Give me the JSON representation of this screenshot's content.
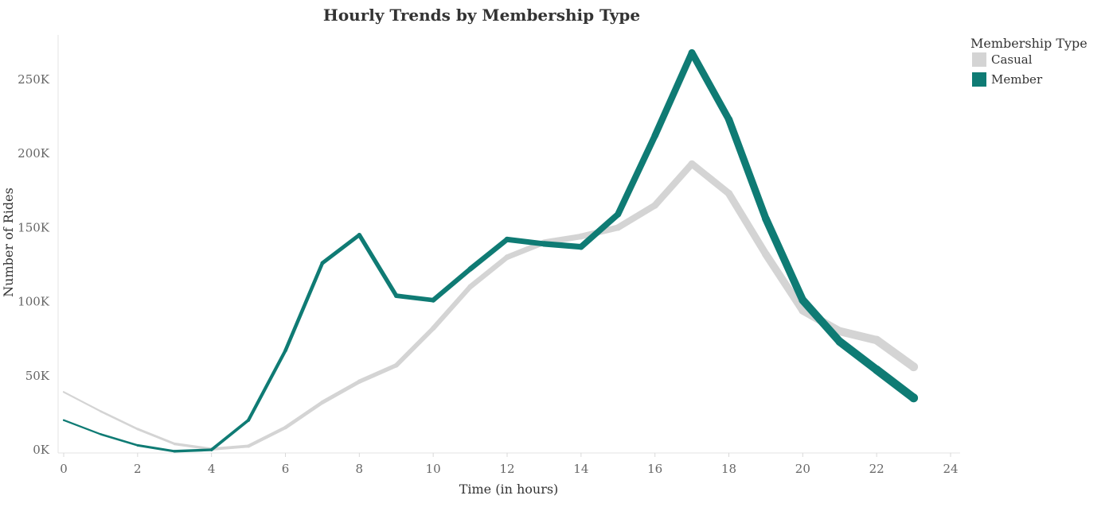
{
  "chart_data": {
    "type": "line",
    "title": "Hourly Trends by Membership Type",
    "xlabel": "Time (in hours)",
    "ylabel": "Number of Rides",
    "x": [
      0,
      1,
      2,
      3,
      4,
      5,
      6,
      7,
      8,
      9,
      10,
      11,
      12,
      13,
      14,
      15,
      16,
      17,
      18,
      19,
      20,
      21,
      22,
      23
    ],
    "xlim": [
      0,
      24
    ],
    "x_ticks": [
      0,
      2,
      4,
      6,
      8,
      10,
      12,
      14,
      16,
      18,
      20,
      22,
      24
    ],
    "ylim": [
      0,
      280000
    ],
    "y_ticks": [
      {
        "value": 0,
        "label": "0K"
      },
      {
        "value": 50000,
        "label": "50K"
      },
      {
        "value": 100000,
        "label": "100K"
      },
      {
        "value": 150000,
        "label": "150K"
      },
      {
        "value": 200000,
        "label": "200K"
      },
      {
        "value": 250000,
        "label": "250K"
      }
    ],
    "grid": false,
    "legend": {
      "title": "Membership Type",
      "placement": "top-right"
    },
    "series": [
      {
        "name": "Casual",
        "color": "#d4d4d4",
        "values": [
          39000,
          26000,
          14000,
          4000,
          500,
          2500,
          15000,
          32000,
          46000,
          57000,
          82000,
          110000,
          130000,
          140000,
          144000,
          150000,
          165000,
          193000,
          173000,
          132000,
          94000,
          80000,
          74000,
          56000
        ]
      },
      {
        "name": "Member",
        "color": "#0f7b74",
        "values": [
          20000,
          10500,
          3000,
          -1000,
          0,
          20000,
          67000,
          126000,
          145000,
          104000,
          101000,
          122000,
          142000,
          139000,
          137000,
          159000,
          212000,
          268000,
          223000,
          156000,
          101000,
          73000,
          54000,
          35000
        ]
      }
    ]
  }
}
